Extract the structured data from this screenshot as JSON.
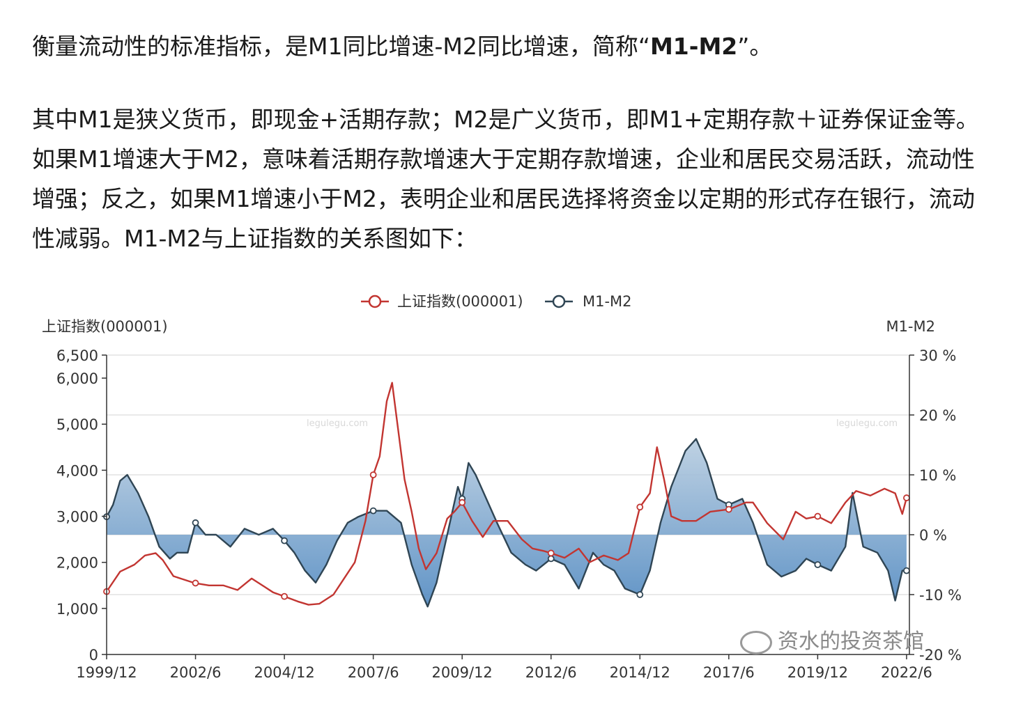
{
  "article": {
    "p1_a": "衡量流动性的标准指标，是M1同比增速-M2同比增速，简称“",
    "p1_bold": "M1-M2",
    "p1_b": "”。",
    "p2": "其中M1是狭义货币，即现金+活期存款；M2是广义货币，即M1+定期存款＋证券保证金等。如果M1增速大于M2，意味着活期存款增速大于定期存款增速，企业和居民交易活跃，流动性增强；反之，如果M1增速小于M2，表明企业和居民选择将资金以定期的形式存在银行，流动性减弱。M1-M2与上证指数的关系图如下："
  },
  "watermarks": {
    "chart_left": "legulegu.com",
    "chart_right": "legulegu.com",
    "brand": "资水的投资茶馆"
  },
  "chart_data": {
    "type": "line",
    "legend": [
      "上证指数(000001)",
      "M1-M2"
    ],
    "legend_position": "top-center",
    "y_left_label": "上证指数(000001)",
    "y_right_label": "M1-M2",
    "y_left_ticks": [
      "6,500",
      "6,000",
      "5,000",
      "4,000",
      "3,000",
      "2,000",
      "1,000",
      "0"
    ],
    "y_left_tick_values": [
      6500,
      6000,
      5000,
      4000,
      3000,
      2000,
      1000,
      0
    ],
    "y_right_ticks": [
      "30 %",
      "20 %",
      "10 %",
      "0 %",
      "-10 %",
      "-20 %"
    ],
    "y_right_tick_values": [
      30,
      20,
      10,
      0,
      -10,
      -20
    ],
    "ylim_left": [
      0,
      6500
    ],
    "ylim_right": [
      -20,
      30
    ],
    "x_ticks": [
      "1999/12",
      "2002/6",
      "2004/12",
      "2007/6",
      "2009/12",
      "2012/6",
      "2014/12",
      "2017/6",
      "2019/12",
      "2022/6"
    ],
    "x_tick_values": [
      1999.92,
      2002.42,
      2004.92,
      2007.42,
      2009.92,
      2012.42,
      2014.92,
      2017.42,
      2019.92,
      2022.42
    ],
    "xlim": [
      1999.92,
      2022.5
    ],
    "grid": true,
    "colors": {
      "shcomp": "#c23531",
      "m1m2": "#2f4554",
      "area_top": "#b8cde0",
      "area_bottom": "#4f88c0"
    },
    "series": [
      {
        "name": "上证指数(000001)",
        "x": [
          1999.92,
          2000.3,
          2000.7,
          2001.0,
          2001.3,
          2001.5,
          2001.8,
          2002.0,
          2002.4,
          2002.8,
          2003.2,
          2003.6,
          2004.0,
          2004.3,
          2004.6,
          2004.92,
          2005.3,
          2005.6,
          2005.9,
          2006.3,
          2006.6,
          2006.9,
          2007.2,
          2007.42,
          2007.6,
          2007.8,
          2007.95,
          2008.1,
          2008.3,
          2008.5,
          2008.7,
          2008.9,
          2009.2,
          2009.5,
          2009.7,
          2009.92,
          2010.2,
          2010.5,
          2010.8,
          2011.2,
          2011.6,
          2011.9,
          2012.2,
          2012.42,
          2012.8,
          2013.2,
          2013.5,
          2013.9,
          2014.3,
          2014.6,
          2014.92,
          2015.2,
          2015.4,
          2015.6,
          2015.8,
          2016.1,
          2016.5,
          2016.9,
          2017.42,
          2017.9,
          2018.1,
          2018.5,
          2018.95,
          2019.3,
          2019.6,
          2019.92,
          2020.3,
          2020.7,
          2021.0,
          2021.4,
          2021.8,
          2022.1,
          2022.3,
          2022.42
        ],
        "values": [
          1366,
          1800,
          1950,
          2150,
          2200,
          2050,
          1700,
          1650,
          1550,
          1500,
          1500,
          1400,
          1650,
          1500,
          1350,
          1260,
          1150,
          1080,
          1100,
          1300,
          1650,
          2000,
          2900,
          3900,
          4300,
          5500,
          5900,
          5000,
          3800,
          3100,
          2300,
          1850,
          2200,
          2950,
          3100,
          3300,
          2900,
          2550,
          2900,
          2900,
          2500,
          2300,
          2250,
          2200,
          2100,
          2300,
          2000,
          2150,
          2050,
          2200,
          3200,
          3500,
          4500,
          3800,
          3000,
          2900,
          2900,
          3100,
          3150,
          3300,
          3300,
          2850,
          2500,
          3100,
          2950,
          3000,
          2850,
          3300,
          3550,
          3450,
          3600,
          3500,
          3050,
          3400
        ]
      },
      {
        "name": "M1-M2",
        "x": [
          1999.92,
          2000.1,
          2000.3,
          2000.5,
          2000.8,
          2001.1,
          2001.4,
          2001.7,
          2001.9,
          2002.2,
          2002.42,
          2002.7,
          2003.0,
          2003.4,
          2003.8,
          2004.2,
          2004.6,
          2004.92,
          2005.2,
          2005.5,
          2005.8,
          2006.1,
          2006.4,
          2006.7,
          2007.0,
          2007.42,
          2007.8,
          2008.2,
          2008.5,
          2008.8,
          2008.95,
          2009.2,
          2009.5,
          2009.8,
          2009.92,
          2010.1,
          2010.3,
          2010.6,
          2010.9,
          2011.3,
          2011.7,
          2012.0,
          2012.42,
          2012.8,
          2013.2,
          2013.6,
          2013.9,
          2014.2,
          2014.5,
          2014.92,
          2015.2,
          2015.5,
          2015.8,
          2016.2,
          2016.5,
          2016.8,
          2017.1,
          2017.42,
          2017.8,
          2018.1,
          2018.5,
          2018.9,
          2019.3,
          2019.6,
          2019.92,
          2020.3,
          2020.7,
          2020.9,
          2021.2,
          2021.6,
          2021.9,
          2022.1,
          2022.3,
          2022.42
        ],
        "values": [
          3,
          5,
          9,
          10,
          7,
          3,
          -2,
          -4,
          -3,
          -3,
          2,
          0,
          0,
          -2,
          1,
          0,
          1,
          -1,
          -3,
          -6,
          -8,
          -5,
          -1,
          2,
          3,
          4,
          4,
          2,
          -5,
          -10,
          -12,
          -8,
          0,
          8,
          6,
          12,
          10,
          6,
          2,
          -3,
          -5,
          -6,
          -4,
          -5,
          -9,
          -3,
          -5,
          -6,
          -9,
          -10,
          -6,
          2,
          8,
          14,
          16,
          12,
          6,
          5,
          6,
          2,
          -5,
          -7,
          -6,
          -4,
          -5,
          -6,
          -2,
          7,
          -2,
          -3,
          -6,
          -11,
          -6,
          -6
        ]
      }
    ],
    "marked_points_shcomp": [
      {
        "x": 1999.92,
        "y": 1366
      },
      {
        "x": 2002.42,
        "y": 1550
      },
      {
        "x": 2004.92,
        "y": 1260
      },
      {
        "x": 2007.42,
        "y": 3900
      },
      {
        "x": 2009.92,
        "y": 3300
      },
      {
        "x": 2012.42,
        "y": 2200
      },
      {
        "x": 2014.92,
        "y": 3200
      },
      {
        "x": 2017.42,
        "y": 3150
      },
      {
        "x": 2019.92,
        "y": 3000
      },
      {
        "x": 2022.42,
        "y": 3400
      }
    ],
    "marked_points_m1m2": [
      {
        "x": 1999.92,
        "y": 3
      },
      {
        "x": 2002.42,
        "y": 2
      },
      {
        "x": 2004.92,
        "y": -1
      },
      {
        "x": 2007.42,
        "y": 4
      },
      {
        "x": 2009.92,
        "y": 6
      },
      {
        "x": 2012.42,
        "y": -4
      },
      {
        "x": 2014.92,
        "y": -10
      },
      {
        "x": 2017.42,
        "y": 5
      },
      {
        "x": 2019.92,
        "y": -5
      },
      {
        "x": 2022.42,
        "y": -6
      }
    ]
  }
}
